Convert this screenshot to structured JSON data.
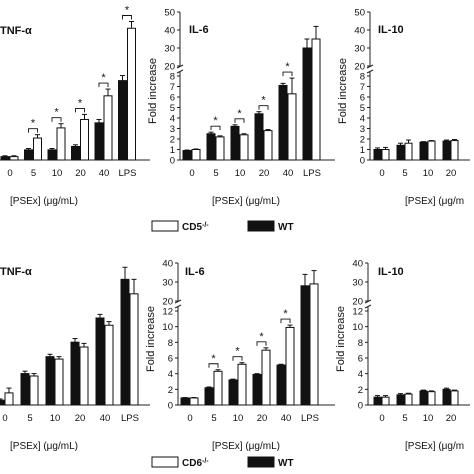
{
  "chart_data": [
    {
      "id": "tnf-top",
      "type": "bar",
      "title": "TNF-α",
      "categories": [
        "0",
        "5",
        "10",
        "20",
        "40",
        "LPS"
      ],
      "series": [
        {
          "name": "WT",
          "values": [
            0.2,
            0.6,
            0.6,
            0.8,
            2.2,
            4.7
          ]
        },
        {
          "name": "CD5-/-",
          "values": [
            0.2,
            1.3,
            1.9,
            2.4,
            3.8,
            7.8
          ]
        }
      ],
      "errors": [
        [
          0.05,
          0.08,
          0.08,
          0.1,
          0.2,
          0.3
        ],
        [
          0.05,
          0.2,
          0.25,
          0.3,
          0.4,
          0.4
        ]
      ],
      "sig": [
        "",
        "*",
        "*",
        "*",
        "*",
        "*"
      ],
      "xlabel": "[PSEx] (μg/mL)",
      "ylabel": "",
      "ylim": [
        0,
        9
      ]
    },
    {
      "id": "il6-top",
      "type": "bar",
      "title": "IL-6",
      "categories": [
        "0",
        "5",
        "10",
        "20",
        "40",
        "LPS"
      ],
      "series": [
        {
          "name": "WT",
          "values": [
            0.9,
            2.5,
            3.2,
            4.4,
            7.1,
            30
          ]
        },
        {
          "name": "CD5-/-",
          "values": [
            1.0,
            2.2,
            2.4,
            2.8,
            6.3,
            35
          ]
        }
      ],
      "errors": [
        [
          0.05,
          0.15,
          0.15,
          0.2,
          0.2,
          5
        ],
        [
          0.05,
          0.1,
          0.1,
          0.1,
          1.5,
          7
        ]
      ],
      "sig": [
        "",
        "*",
        "*",
        "*",
        "*",
        ""
      ],
      "xlabel": "[PSEx] (μg/mL)",
      "ylabel": "Fold increase",
      "ylim": [
        0,
        50
      ],
      "break_at": 8,
      "yticks": [
        "0",
        "1",
        "2",
        "3",
        "4",
        "5",
        "6",
        "7",
        "8",
        "20",
        "30",
        "40",
        "50"
      ]
    },
    {
      "id": "il10-top",
      "type": "bar",
      "title": "IL-10",
      "categories": [
        "0",
        "5",
        "10",
        "20"
      ],
      "series": [
        {
          "name": "WT",
          "values": [
            1.0,
            1.4,
            1.7,
            1.8
          ]
        },
        {
          "name": "CD5-/-",
          "values": [
            1.0,
            1.6,
            1.8,
            1.85
          ]
        }
      ],
      "errors": [
        [
          0.15,
          0.2,
          0.05,
          0.1
        ],
        [
          0.2,
          0.3,
          0.05,
          0.1
        ]
      ],
      "sig": [
        "",
        "",
        "",
        ""
      ],
      "xlabel": "[PSEx] (μg/m",
      "ylabel": "Fold increase",
      "ylim": [
        0,
        50
      ],
      "break_at": 8,
      "yticks": [
        "0",
        "1",
        "2",
        "3",
        "4",
        "5",
        "6",
        "7",
        "8",
        "20",
        "30",
        "40",
        "50"
      ]
    },
    {
      "id": "tnf-bottom",
      "type": "bar",
      "title": "TNF-α",
      "categories": [
        "0",
        "5",
        "10",
        "20",
        "40",
        "LPS"
      ],
      "series": [
        {
          "name": "WT",
          "values": [
            0.2,
            1.3,
            2.0,
            2.6,
            3.6,
            5.2
          ]
        },
        {
          "name": "CD6-/-",
          "values": [
            0.5,
            1.2,
            1.9,
            2.4,
            3.3,
            4.6
          ]
        }
      ],
      "errors": [
        [
          0.05,
          0.1,
          0.1,
          0.15,
          0.15,
          0.5
        ],
        [
          0.2,
          0.1,
          0.1,
          0.15,
          0.15,
          0.6
        ]
      ],
      "sig": [
        "",
        "",
        "",
        "",
        "",
        ""
      ],
      "xlabel": "[PSEx] (μg/mL)",
      "ylabel": "",
      "ylim": [
        0,
        6
      ]
    },
    {
      "id": "il6-bottom",
      "type": "bar",
      "title": "IL-6",
      "categories": [
        "0",
        "5",
        "10",
        "20",
        "40",
        "LPS"
      ],
      "series": [
        {
          "name": "WT",
          "values": [
            0.9,
            2.2,
            3.2,
            3.9,
            5.1,
            28
          ]
        },
        {
          "name": "CD6-/-",
          "values": [
            0.9,
            4.3,
            5.2,
            7.0,
            9.9,
            29
          ]
        }
      ],
      "errors": [
        [
          0.05,
          0.1,
          0.1,
          0.1,
          0.1,
          6
        ],
        [
          0.05,
          0.2,
          0.2,
          0.3,
          0.3,
          7
        ]
      ],
      "sig": [
        "",
        "*",
        "*",
        "*",
        "*",
        ""
      ],
      "xlabel": "[PSEx] (μg/mL)",
      "ylabel": "Fold increase",
      "ylim": [
        0,
        40
      ],
      "break_at": 12,
      "yticks": [
        "0",
        "2",
        "4",
        "6",
        "8",
        "10",
        "12",
        "20",
        "30",
        "40"
      ]
    },
    {
      "id": "il10-bottom",
      "type": "bar",
      "title": "IL-10",
      "categories": [
        "0",
        "5",
        "10",
        "20"
      ],
      "series": [
        {
          "name": "WT",
          "values": [
            1.0,
            1.3,
            1.8,
            2.0
          ]
        },
        {
          "name": "CD6-/-",
          "values": [
            1.0,
            1.4,
            1.7,
            1.8
          ]
        }
      ],
      "errors": [
        [
          0.2,
          0.15,
          0.1,
          0.15
        ],
        [
          0.2,
          0.1,
          0.1,
          0.1
        ]
      ],
      "sig": [
        "",
        "",
        "",
        ""
      ],
      "xlabel": "[PSEx] (μg/m",
      "ylabel": "Fold increase",
      "ylim": [
        0,
        40
      ],
      "break_at": 12,
      "yticks": [
        "0",
        "2",
        "4",
        "6",
        "8",
        "10",
        "12",
        "20",
        "30",
        "40"
      ]
    }
  ],
  "legends": [
    {
      "id": "legend-top",
      "items": [
        {
          "label": "CD5",
          "sup": "-/-",
          "color": "#ffffff"
        },
        {
          "label": "WT",
          "sup": "",
          "color": "#111111"
        }
      ]
    },
    {
      "id": "legend-bottom",
      "items": [
        {
          "label": "CD6",
          "sup": "-/-",
          "color": "#ffffff"
        },
        {
          "label": "WT",
          "sup": "",
          "color": "#111111"
        }
      ]
    }
  ],
  "colors": {
    "wt_fill": "#111111",
    "ko_fill": "#ffffff",
    "axis": "#222222"
  }
}
